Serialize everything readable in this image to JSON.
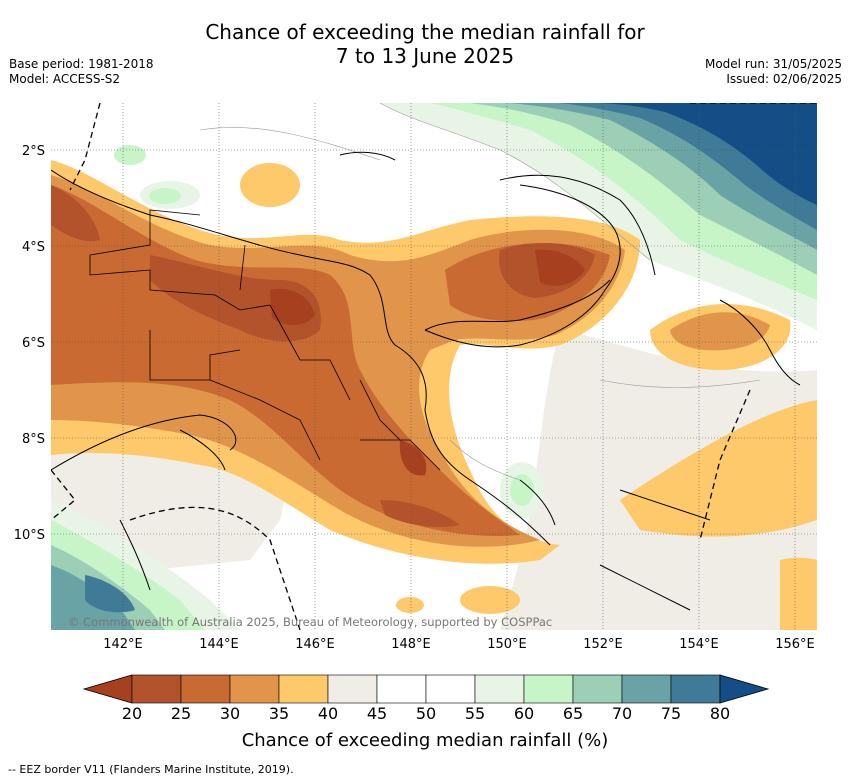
{
  "title_line1": "Chance of exceeding the median rainfall for",
  "title_line2": "7 to 13 June 2025",
  "meta": {
    "base_period": "Base period: 1981-2018",
    "model": "Model: ACCESS-S2",
    "model_run": "Model run: 31/05/2025",
    "issued": "Issued: 02/06/2025"
  },
  "map": {
    "lat_labels": [
      "2°S",
      "4°S",
      "6°S",
      "8°S",
      "10°S"
    ],
    "lon_labels": [
      "142°E",
      "144°E",
      "146°E",
      "148°E",
      "150°E",
      "152°E",
      "154°E",
      "156°E"
    ],
    "copyright": "© Commonwealth of Australia 2025, Bureau of Meteorology, supported by COSPPac"
  },
  "colorbar": {
    "ticks": [
      "20",
      "25",
      "30",
      "35",
      "40",
      "45",
      "50",
      "55",
      "60",
      "65",
      "70",
      "75",
      "80"
    ],
    "colors": [
      "#a6401e",
      "#b3532b",
      "#c86a32",
      "#e0954a",
      "#fdc96a",
      "#f0ece6",
      "#ffffff",
      "#ffffff",
      "#e8f4e5",
      "#c8f5c8",
      "#9ccfb6",
      "#6aa3a5",
      "#3f7a97",
      "#154e87"
    ],
    "label": "Chance of exceeding median rainfall (%)"
  },
  "eez_legend": "-- EEZ border V11 (Flanders Marine Institute, 2019)."
}
